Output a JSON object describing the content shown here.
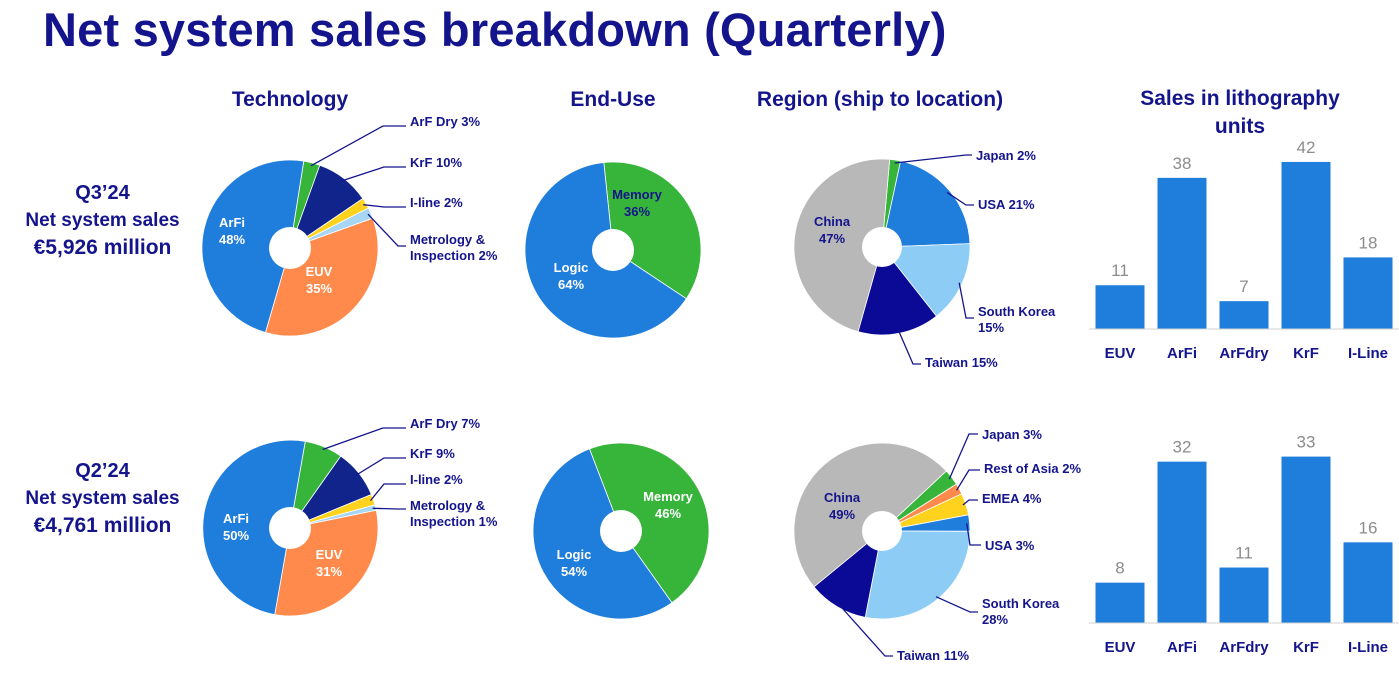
{
  "title": "Net system sales breakdown (Quarterly)",
  "headers": {
    "technology": "Technology",
    "end_use": "End-Use",
    "region": "Region (ship to location)",
    "litho_line1": "Sales in lithography",
    "litho_line2": "units"
  },
  "quarters": [
    {
      "label": "Q3’24",
      "subtitle": "Net system sales",
      "amount": "€5,926 million"
    },
    {
      "label": "Q2’24",
      "subtitle": "Net system sales",
      "amount": "€4,761 million"
    }
  ],
  "colors": {
    "title": "#14148c",
    "ArFi": "#1f7ddc",
    "EUV": "#ff8a4c",
    "ArF Dry": "#37b43a",
    "KrF": "#10248c",
    "I-line": "#ffd21e",
    "Metrology & Inspection": "#a6d6f4",
    "Logic": "#1f7ddc",
    "Memory": "#37b43a",
    "China": "#b8b8b8",
    "Japan": "#37b43a",
    "USA": "#1f7ddc",
    "South Korea": "#8dcdf5",
    "Taiwan": "#0a0a96",
    "Rest of Asia": "#ff8a4c",
    "EMEA": "#ffd21e",
    "bar": "#1f7ddc"
  },
  "chart_data": [
    {
      "id": "q3-technology",
      "type": "pie",
      "title": "Technology",
      "quarter": "Q3’24",
      "slices": [
        {
          "name": "ArF Dry",
          "value": 3,
          "label": "ArF Dry 3%"
        },
        {
          "name": "KrF",
          "value": 10,
          "label": "KrF 10%"
        },
        {
          "name": "I-line",
          "value": 2,
          "label": "I-line 2%"
        },
        {
          "name": "Metrology & Inspection",
          "value": 2,
          "label": "Metrology & Inspection 2%"
        },
        {
          "name": "EUV",
          "value": 35,
          "label": "EUV 35%"
        },
        {
          "name": "ArFi",
          "value": 48,
          "label": "ArFi 48%"
        }
      ]
    },
    {
      "id": "q3-enduse",
      "type": "pie",
      "title": "End-Use",
      "quarter": "Q3’24",
      "slices": [
        {
          "name": "Memory",
          "value": 36,
          "label": "Memory 36%"
        },
        {
          "name": "Logic",
          "value": 64,
          "label": "Logic 64%"
        }
      ]
    },
    {
      "id": "q3-region",
      "type": "pie",
      "title": "Region (ship to location)",
      "quarter": "Q3’24",
      "slices": [
        {
          "name": "Japan",
          "value": 2,
          "label": "Japan 2%"
        },
        {
          "name": "USA",
          "value": 21,
          "label": "USA 21%"
        },
        {
          "name": "South Korea",
          "value": 15,
          "label": "South Korea 15%"
        },
        {
          "name": "Taiwan",
          "value": 15,
          "label": "Taiwan 15%"
        },
        {
          "name": "China",
          "value": 47,
          "label": "China 47%"
        }
      ]
    },
    {
      "id": "q3-litho-units",
      "type": "bar",
      "title": "Sales in lithography units",
      "quarter": "Q3’24",
      "categories": [
        "EUV",
        "ArFi",
        "ArFdry",
        "KrF",
        "I-Line"
      ],
      "values": [
        11,
        38,
        7,
        42,
        18
      ]
    },
    {
      "id": "q2-technology",
      "type": "pie",
      "title": "Technology",
      "quarter": "Q2’24",
      "slices": [
        {
          "name": "ArF Dry",
          "value": 7,
          "label": "ArF Dry 7%"
        },
        {
          "name": "KrF",
          "value": 9,
          "label": "KrF 9%"
        },
        {
          "name": "I-line",
          "value": 2,
          "label": "I-line 2%"
        },
        {
          "name": "Metrology & Inspection",
          "value": 1,
          "label": "Metrology & Inspection 1%"
        },
        {
          "name": "EUV",
          "value": 31,
          "label": "EUV 31%"
        },
        {
          "name": "ArFi",
          "value": 50,
          "label": "ArFi 50%"
        }
      ]
    },
    {
      "id": "q2-enduse",
      "type": "pie",
      "title": "End-Use",
      "quarter": "Q2’24",
      "slices": [
        {
          "name": "Memory",
          "value": 46,
          "label": "Memory 46%"
        },
        {
          "name": "Logic",
          "value": 54,
          "label": "Logic 54%"
        }
      ]
    },
    {
      "id": "q2-region",
      "type": "pie",
      "title": "Region (ship to location)",
      "quarter": "Q2’24",
      "slices": [
        {
          "name": "Japan",
          "value": 3,
          "label": "Japan 3%"
        },
        {
          "name": "Rest of Asia",
          "value": 2,
          "label": "Rest of Asia 2%"
        },
        {
          "name": "EMEA",
          "value": 4,
          "label": "EMEA 4%"
        },
        {
          "name": "USA",
          "value": 3,
          "label": "USA 3%"
        },
        {
          "name": "South Korea",
          "value": 28,
          "label": "South Korea 28%"
        },
        {
          "name": "Taiwan",
          "value": 11,
          "label": "Taiwan 11%"
        },
        {
          "name": "China",
          "value": 49,
          "label": "China 49%"
        }
      ]
    },
    {
      "id": "q2-litho-units",
      "type": "bar",
      "title": "Sales in lithography units",
      "quarter": "Q2’24",
      "categories": [
        "EUV",
        "ArFi",
        "ArFdry",
        "KrF",
        "I-Line"
      ],
      "values": [
        8,
        32,
        11,
        33,
        16
      ]
    }
  ]
}
